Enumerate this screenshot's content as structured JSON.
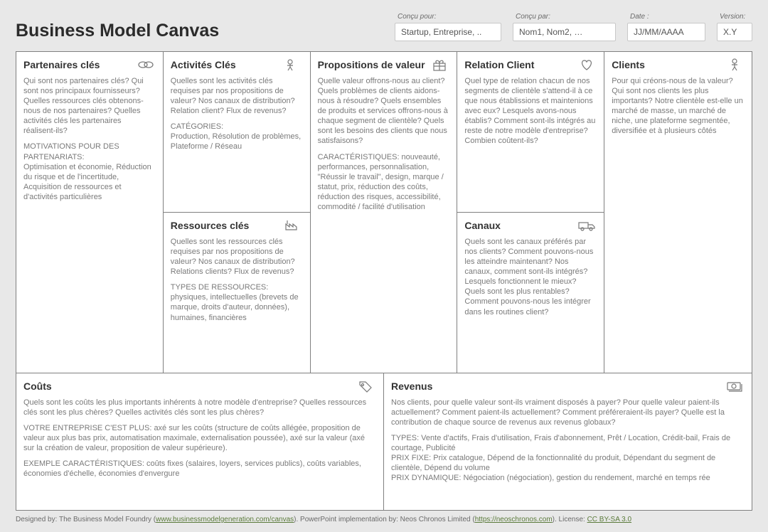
{
  "title": "Business Model Canvas",
  "meta": {
    "designed_for": {
      "label": "Conçu pour:",
      "value": "Startup, Entreprise, .."
    },
    "designed_by": {
      "label": "Conçu par:",
      "value": "Nom1, Nom2, …"
    },
    "date": {
      "label": "Date :",
      "value": "JJ/MM/AAAA"
    },
    "version": {
      "label": "Version:",
      "value": "X.Y"
    }
  },
  "blocks": {
    "kp": {
      "title": "Partenaires clés",
      "icon": "link-icon",
      "paras": [
        "Qui sont nos partenaires clés? Qui sont nos principaux fournisseurs? Quelles ressources clés obtenons-nous de nos partenaires? Quelles activités clés les partenaires réalisent-ils?",
        "MOTIVATIONS POUR DES PARTENARIATS:\nOptimisation et économie, Réduction du risque et de l'incertitude, Acquisition de ressources et d'activités particulières"
      ]
    },
    "ka": {
      "title": "Activités Clés",
      "icon": "activity-icon",
      "paras": [
        "Quelles sont les activités clés requises par nos propositions de valeur? Nos canaux de distribution? Relation client? Flux de revenus?",
        "CATÉGORIES:\nProduction, Résolution de problèmes, Plateforme / Réseau"
      ]
    },
    "kr": {
      "title": "Ressources clés",
      "icon": "factory-icon",
      "paras": [
        "Quelles sont les ressources clés requises par nos propositions de valeur? Nos canaux de distribution? Relations clients? Flux de revenus?",
        "TYPES DE RESSOURCES: physiques, intellectuelles (brevets de marque, droits d'auteur, données), humaines, financières"
      ]
    },
    "vp": {
      "title": "Propositions de valeur",
      "icon": "gift-icon",
      "paras": [
        "Quelle valeur offrons-nous au client? Quels problèmes de clients aidons-nous à résoudre? Quels ensembles de produits et services offrons-nous à chaque segment de clientèle? Quels sont les besoins des clients que nous satisfaisons?",
        "CARACTÉRISTIQUES: nouveauté, performances, personnalisation, \"Réussir le travail\", design, marque / statut, prix, réduction des coûts, réduction des risques, accessibilité, commodité / facilité d'utilisation"
      ]
    },
    "cr": {
      "title": "Relation Client",
      "icon": "heart-icon",
      "paras": [
        "Quel type de relation chacun de nos segments de clientèle s'attend-il à ce que nous établissions et maintenions avec eux? Lesquels avons-nous établis? Comment sont-ils intégrés au reste de notre modèle d'entreprise? Combien coûtent-ils?"
      ]
    },
    "ch": {
      "title": "Canaux",
      "icon": "truck-icon",
      "paras": [
        "Quels sont les canaux préférés par nos clients? Comment pouvons-nous les atteindre maintenant? Nos canaux, comment sont-ils intégrés? Lesquels fonctionnent le mieux? Quels sont les plus rentables? Comment pouvons-nous les intégrer dans les routines client?"
      ]
    },
    "cs": {
      "title": "Clients",
      "icon": "person-icon",
      "paras": [
        "Pour qui créons-nous de la valeur? Qui sont nos clients les plus importants? Notre clientèle est-elle un marché de masse, un marché de niche, une plateforme segmentée, diversifiée et à plusieurs côtés"
      ]
    },
    "cost": {
      "title": "Coûts",
      "icon": "tag-icon",
      "paras": [
        "Quels sont les coûts les plus importants inhérents à notre modèle d'entreprise? Quelles ressources clés sont les plus chères? Quelles activités clés sont les plus chères?",
        "VOTRE ENTREPRISE C'EST PLUS: axé sur les coûts (structure de coûts allégée, proposition de valeur aux plus bas prix, automatisation maximale, externalisation poussée), axé sur la valeur (axé sur la création de valeur, proposition de valeur supérieure).",
        "EXEMPLE CARACTÉRISTIQUES: coûts fixes (salaires, loyers, services publics), coûts variables, économies d'échelle, économies d'envergure"
      ]
    },
    "rev": {
      "title": "Revenus",
      "icon": "cash-icon",
      "paras": [
        "Nos clients, pour quelle valeur sont-ils vraiment disposés à payer? Pour quelle valeur paient-ils actuellement? Comment paient-ils actuellement? Comment préféreraient-ils payer? Quelle est la contribution de chaque source de revenus aux revenus globaux?",
        "TYPES: Vente d'actifs, Frais d'utilisation, Frais d'abonnement, Prêt / Location, Crédit-bail, Frais de courtage, Publicité\nPRIX FIXE: Prix catalogue, Dépend de la fonctionnalité du produit, Dépendant du segment de clientèle, Dépend du volume\nPRIX DYNAMIQUE: Négociation (négociation), gestion du rendement, marché en temps rée"
      ]
    }
  },
  "footer": {
    "prefix": "Designed by: The Business Model Foundry (",
    "link1_text": "www.businessmodelgeneration.com/canvas",
    "mid1": "). PowerPoint implementation by: Neos Chronos Limited (",
    "link2_text": "https://neoschronos.com",
    "mid2": "). License: ",
    "link3_text": "CC BY-SA 3.0"
  },
  "colors": {
    "page_bg": "#e8e8e8",
    "panel_bg": "#ffffff",
    "border": "#808080",
    "title_text": "#2b2b2b",
    "body_text": "#7a7a7a",
    "link": "#5a7a3a"
  }
}
